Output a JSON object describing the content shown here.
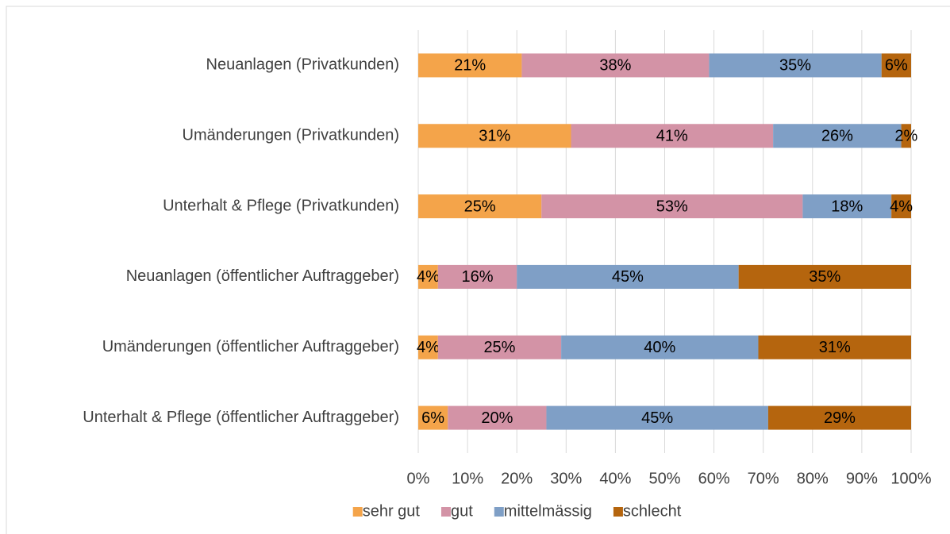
{
  "chart_data": {
    "type": "stacked_bar_horizontal",
    "categories": [
      "Neuanlagen (Privatkunden)",
      "Umänderungen (Privatkunden)",
      "Unterhalt & Pflege (Privatkunden)",
      "Neuanlagen (öffentlicher Auftraggeber)",
      "Umänderungen (öffentlicher Auftraggeber)",
      "Unterhalt & Pflege (öffentlicher Auftraggeber)"
    ],
    "series": [
      {
        "name": "sehr gut",
        "color": "#f4a44a",
        "values": [
          21,
          31,
          25,
          4,
          4,
          6
        ],
        "value_labels": [
          "21%",
          "31%",
          "25%",
          "4%",
          "4%",
          "6%"
        ]
      },
      {
        "name": "gut",
        "color": "#d393a6",
        "values": [
          38,
          41,
          53,
          16,
          25,
          20
        ],
        "value_labels": [
          "38%",
          "41%",
          "53%",
          "16%",
          "25%",
          "20%"
        ]
      },
      {
        "name": "mittelmässig",
        "color": "#7f9fc6",
        "values": [
          35,
          26,
          18,
          45,
          40,
          45
        ],
        "value_labels": [
          "35%",
          "26%",
          "18%",
          "45%",
          "40%",
          "45%"
        ]
      },
      {
        "name": "schlecht",
        "color": "#b5650e",
        "values": [
          6,
          2,
          4,
          35,
          31,
          29
        ],
        "value_labels": [
          "6%",
          "2%",
          "4%",
          "35%",
          "31%",
          "29%"
        ]
      }
    ],
    "xlim": [
      0,
      100
    ],
    "xticks": [
      {
        "value": 0,
        "label": "0%"
      },
      {
        "value": 10,
        "label": "10%"
      },
      {
        "value": 20,
        "label": "20%"
      },
      {
        "value": 30,
        "label": "30%"
      },
      {
        "value": 40,
        "label": "40%"
      },
      {
        "value": 50,
        "label": "50%"
      },
      {
        "value": 60,
        "label": "60%"
      },
      {
        "value": 70,
        "label": "70%"
      },
      {
        "value": 80,
        "label": "80%"
      },
      {
        "value": 90,
        "label": "90%"
      },
      {
        "value": 100,
        "label": "100%"
      }
    ],
    "grid": true,
    "legend": "bottom"
  }
}
